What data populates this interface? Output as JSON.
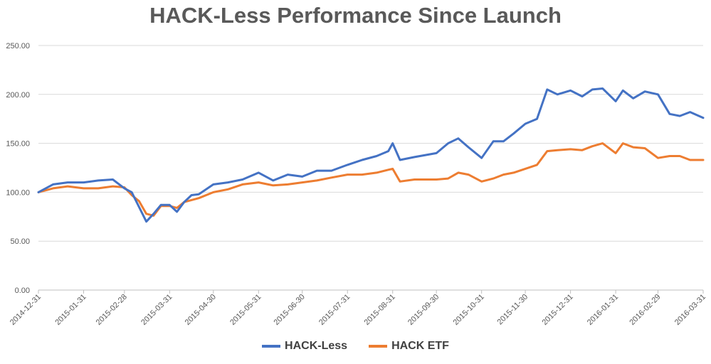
{
  "chart_data": {
    "type": "line",
    "title": "HACK-Less Performance Since Launch",
    "ylim": [
      0,
      250
    ],
    "yticks": [
      "0.00",
      "50.00",
      "100.00",
      "150.00",
      "200.00",
      "250.00"
    ],
    "xticks": [
      "2014-12-31",
      "2015-01-31",
      "2015-02-28",
      "2015-03-31",
      "2015-04-30",
      "2015-05-31",
      "2015-06-30",
      "2015-07-31",
      "2015-08-31",
      "2015-09-30",
      "2015-10-31",
      "2015-11-30",
      "2015-12-31",
      "2016-01-31",
      "2016-02-29",
      "2016-03-31"
    ],
    "grid": "horizontal",
    "legend_position": "bottom",
    "x": [
      "2014-12-31",
      "2015-01-10",
      "2015-01-20",
      "2015-01-31",
      "2015-02-10",
      "2015-02-20",
      "2015-02-28",
      "2015-03-05",
      "2015-03-10",
      "2015-03-15",
      "2015-03-20",
      "2015-03-25",
      "2015-03-31",
      "2015-04-05",
      "2015-04-10",
      "2015-04-15",
      "2015-04-20",
      "2015-04-30",
      "2015-05-10",
      "2015-05-20",
      "2015-05-31",
      "2015-06-10",
      "2015-06-20",
      "2015-06-30",
      "2015-07-10",
      "2015-07-20",
      "2015-07-31",
      "2015-08-10",
      "2015-08-20",
      "2015-08-28",
      "2015-08-31",
      "2015-09-05",
      "2015-09-15",
      "2015-09-30",
      "2015-10-08",
      "2015-10-15",
      "2015-10-22",
      "2015-10-31",
      "2015-11-08",
      "2015-11-15",
      "2015-11-22",
      "2015-11-30",
      "2015-12-08",
      "2015-12-15",
      "2015-12-22",
      "2015-12-31",
      "2016-01-08",
      "2016-01-15",
      "2016-01-22",
      "2016-01-31",
      "2016-02-05",
      "2016-02-12",
      "2016-02-20",
      "2016-02-29",
      "2016-03-08",
      "2016-03-15",
      "2016-03-22",
      "2016-03-31"
    ],
    "series": [
      {
        "name": "HACK-Less",
        "color": "#4472C4",
        "values": [
          100,
          108,
          110,
          110,
          112,
          113,
          104,
          100,
          85,
          70,
          78,
          87,
          87,
          80,
          90,
          97,
          98,
          108,
          110,
          113,
          120,
          112,
          118,
          116,
          122,
          122,
          128,
          133,
          137,
          142,
          150,
          133,
          136,
          140,
          150,
          155,
          146,
          135,
          152,
          152,
          160,
          170,
          175,
          205,
          200,
          204,
          198,
          205,
          206,
          193,
          204,
          196,
          203,
          200,
          180,
          178,
          182,
          176
        ]
      },
      {
        "name": "HACK ETF",
        "color": "#ED7D31",
        "values": [
          100,
          104,
          106,
          104,
          104,
          106,
          105,
          97,
          91,
          78,
          76,
          86,
          86,
          84,
          90,
          92,
          94,
          100,
          103,
          108,
          110,
          107,
          108,
          110,
          112,
          115,
          118,
          118,
          120,
          123,
          124,
          111,
          113,
          113,
          114,
          120,
          118,
          111,
          114,
          118,
          120,
          124,
          128,
          142,
          143,
          144,
          143,
          147,
          150,
          140,
          150,
          146,
          145,
          135,
          137,
          137,
          133,
          133
        ]
      }
    ]
  }
}
